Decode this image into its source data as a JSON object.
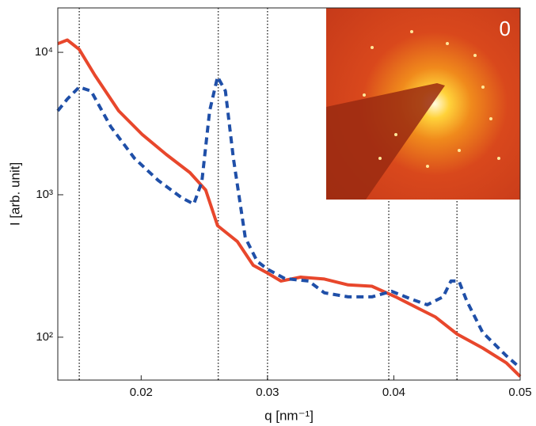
{
  "chart_data": {
    "type": "line",
    "xlabel": "q [nm⁻¹]",
    "ylabel": "I [arb. unit]",
    "xlim": [
      0.0134,
      0.05
    ],
    "ylim": [
      50,
      20500
    ],
    "ylog": true,
    "xticks": [
      0.02,
      0.03,
      0.04,
      0.05
    ],
    "yticks": [
      {
        "value": 100,
        "label": "10²"
      },
      {
        "value": 1000,
        "label": "10³"
      },
      {
        "value": 10000,
        "label": "10⁴"
      }
    ],
    "grid": false,
    "vlines": [
      0.0151,
      0.0261,
      0.03,
      0.0396,
      0.045
    ],
    "inset_label": "0",
    "series": [
      {
        "color": "#e8472c",
        "dash": false,
        "x": [
          0.0134,
          0.01415,
          0.01509,
          0.01634,
          0.01822,
          0.0201,
          0.02198,
          0.02386,
          0.02511,
          0.02605,
          0.02761,
          0.02887,
          0.03,
          0.03106,
          0.03262,
          0.0345,
          0.03638,
          0.03826,
          0.04014,
          0.04202,
          0.04327,
          0.04502,
          0.04703,
          0.04891,
          0.05
        ],
        "values": [
          11500,
          12200,
          10500,
          6900,
          3880,
          2640,
          1920,
          1430,
          1080,
          607,
          470,
          320,
          282,
          248,
          264,
          256,
          233,
          228,
          192,
          158,
          139,
          105,
          84,
          66,
          53
        ]
      },
      {
        "color": "#1f4fa8",
        "dash": true,
        "x": [
          0.0134,
          0.01415,
          0.01509,
          0.01603,
          0.0176,
          0.01947,
          0.02135,
          0.02323,
          0.02417,
          0.0248,
          0.02542,
          0.02605,
          0.02667,
          0.0273,
          0.02824,
          0.02918,
          0.03,
          0.03137,
          0.03325,
          0.0345,
          0.03638,
          0.03826,
          0.03982,
          0.04139,
          0.04264,
          0.0439,
          0.04452,
          0.04515,
          0.04577,
          0.04703,
          0.04891,
          0.05
        ],
        "values": [
          3880,
          4700,
          5700,
          5350,
          3000,
          1800,
          1260,
          950,
          860,
          1230,
          3880,
          6730,
          5350,
          1800,
          500,
          341,
          300,
          258,
          248,
          205,
          192,
          192,
          210,
          185,
          169,
          192,
          248,
          248,
          180,
          108,
          74,
          61
        ]
      }
    ]
  }
}
